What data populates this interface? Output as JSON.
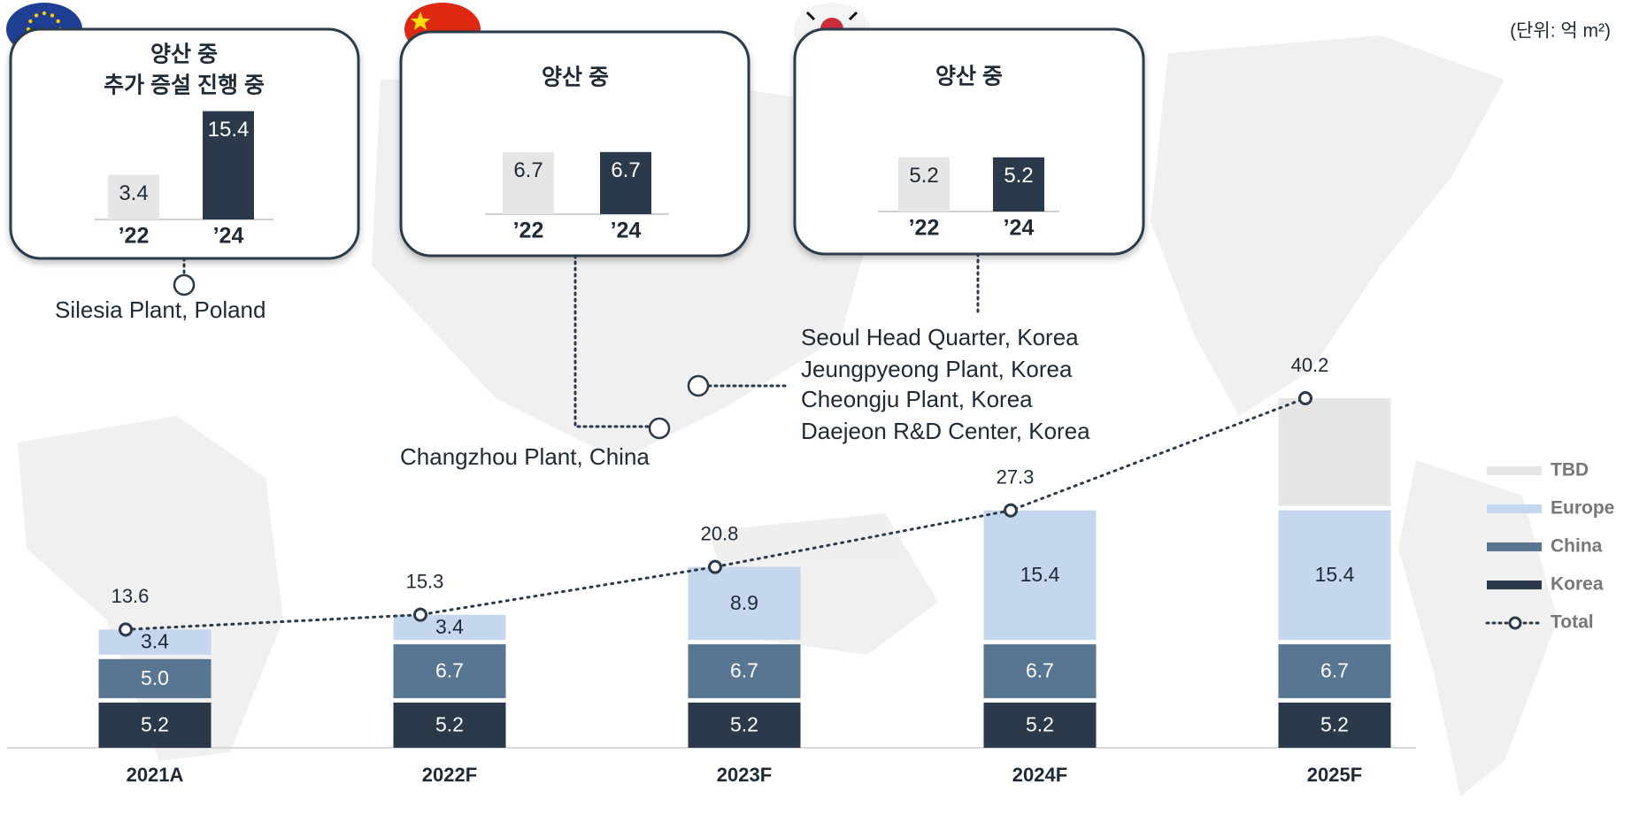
{
  "unit": "(단위: 억 m²)",
  "insets": [
    {
      "title": [
        "양산 중",
        "추가 증설 진행 중"
      ],
      "categories": [
        "’22",
        "’24"
      ],
      "values": [
        3.4,
        15.4
      ],
      "plants": [
        "Silesia Plant, Poland"
      ]
    },
    {
      "title": [
        "양산 중"
      ],
      "categories": [
        "’22",
        "’24"
      ],
      "values": [
        6.7,
        6.7
      ],
      "plants": [
        "Changzhou Plant, China"
      ]
    },
    {
      "title": [
        "양산 중"
      ],
      "categories": [
        "’22",
        "’24"
      ],
      "values": [
        5.2,
        5.2
      ],
      "plants": [
        "Seoul Head Quarter, Korea",
        "Jeungpyeong Plant, Korea",
        "Cheongju Plant, Korea",
        "Daejeon R&D Center, Korea"
      ]
    }
  ],
  "chart_data": {
    "type": "bar",
    "stacked": true,
    "legend": "right",
    "categories": [
      "2021A",
      "2022F",
      "2023F",
      "2024F",
      "2025F"
    ],
    "series": [
      {
        "name": "Korea",
        "color": "#2b3a4a",
        "values": [
          5.2,
          5.2,
          5.2,
          5.2,
          5.2
        ]
      },
      {
        "name": "China",
        "color": "#587591",
        "values": [
          5.0,
          6.7,
          6.7,
          6.7,
          6.7
        ],
        "value_labels": [
          "5.0",
          "6.7",
          "6.7",
          "6.7",
          "6.7"
        ]
      },
      {
        "name": "Europe",
        "color": "#c5d7ee",
        "values": [
          3.4,
          3.4,
          8.9,
          15.4,
          15.4
        ]
      },
      {
        "name": "TBD",
        "color": "#e6e6e6",
        "values": [
          null,
          null,
          null,
          null,
          12.9
        ]
      },
      {
        "name": "Total",
        "type": "line",
        "color": "#2b3a4a",
        "values": [
          13.6,
          15.3,
          20.8,
          27.3,
          40.2
        ]
      }
    ]
  }
}
